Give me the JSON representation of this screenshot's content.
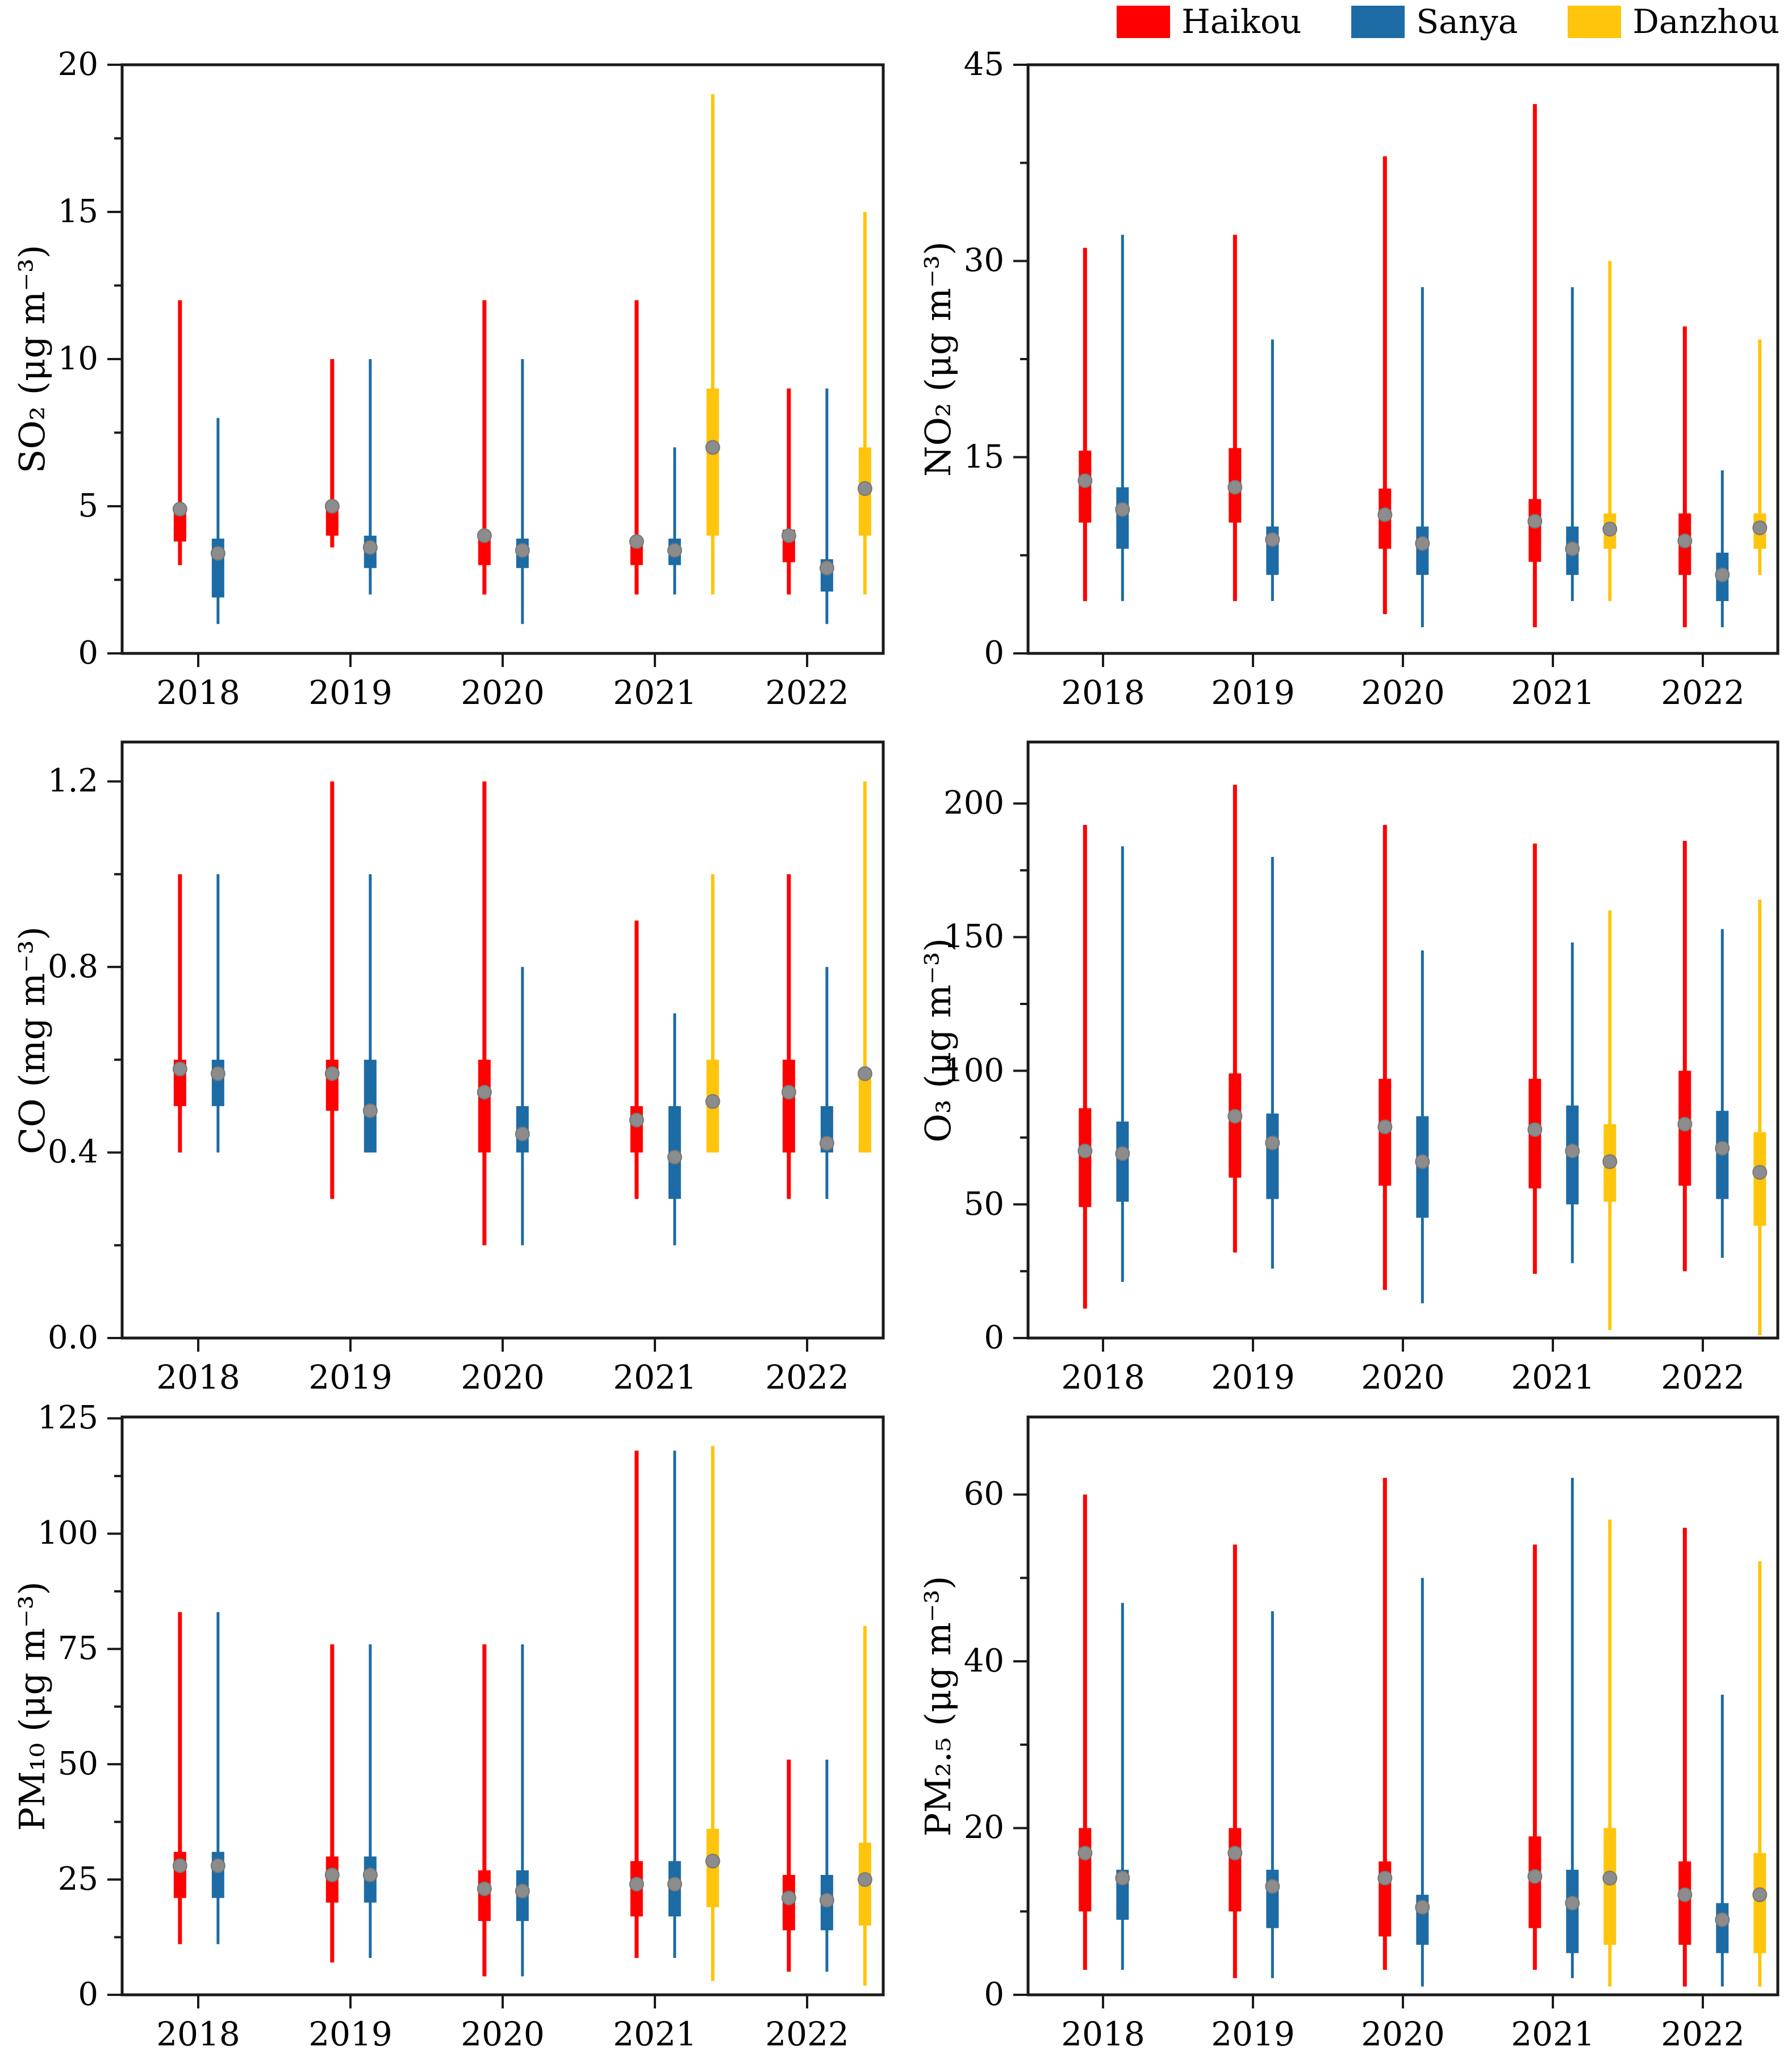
{
  "legend": {
    "items": [
      {
        "label": "Haikou",
        "color": "#fe0000"
      },
      {
        "label": "Sanya",
        "color": "#1c6ba5"
      },
      {
        "label": "Danzhou",
        "color": "#ffc40c"
      }
    ]
  },
  "style": {
    "mean_marker_color": "#8c8c8c",
    "mean_marker_edge": "#767676",
    "axis_color": "#1a1a1a"
  },
  "chart_data": [
    {
      "id": "so2",
      "type": "boxplot",
      "ylabel": "SO₂ (μg m⁻³)",
      "ylim": [
        0,
        20
      ],
      "axis_max": 20,
      "yticks": [
        0,
        5,
        10,
        15,
        20
      ],
      "ytick_labels": [
        "0",
        "5",
        "10",
        "15",
        "20"
      ],
      "minor_tick_step": 2.5,
      "grid": false,
      "legend_position": "top-right-of-figure",
      "categories": [
        "2018",
        "2019",
        "2020",
        "2021",
        "2022"
      ],
      "series": [
        {
          "name": "Haikou",
          "color": "#fe0000",
          "boxes": [
            {
              "lo": 3,
              "q1": 3.8,
              "q3": 5,
              "hi": 12,
              "mean": 4.9
            },
            {
              "lo": 3.6,
              "q1": 4,
              "q3": 5,
              "hi": 10,
              "mean": 5.0
            },
            {
              "lo": 2,
              "q1": 3,
              "q3": 4,
              "hi": 12,
              "mean": 4.0
            },
            {
              "lo": 2,
              "q1": 3,
              "q3": 3.9,
              "hi": 12,
              "mean": 3.8
            },
            {
              "lo": 2,
              "q1": 3.1,
              "q3": 4.2,
              "hi": 9,
              "mean": 4.0
            }
          ]
        },
        {
          "name": "Sanya",
          "color": "#1c6ba5",
          "boxes": [
            {
              "lo": 1,
              "q1": 1.9,
              "q3": 3.9,
              "hi": 8,
              "mean": 3.4
            },
            {
              "lo": 2,
              "q1": 2.9,
              "q3": 4,
              "hi": 10,
              "mean": 3.6
            },
            {
              "lo": 1,
              "q1": 2.9,
              "q3": 3.9,
              "hi": 10,
              "mean": 3.5
            },
            {
              "lo": 2,
              "q1": 3,
              "q3": 3.9,
              "hi": 7,
              "mean": 3.5
            },
            {
              "lo": 1,
              "q1": 2.1,
              "q3": 3.2,
              "hi": 9,
              "mean": 2.9
            }
          ]
        },
        {
          "name": "Danzhou",
          "color": "#ffc40c",
          "boxes": [
            null,
            null,
            null,
            {
              "lo": 2,
              "q1": 4,
              "q3": 9,
              "hi": 19,
              "mean": 7.0
            },
            {
              "lo": 2,
              "q1": 4,
              "q3": 7,
              "hi": 15,
              "mean": 5.6
            }
          ]
        }
      ]
    },
    {
      "id": "no2",
      "type": "boxplot",
      "ylabel": "NO₂ (μg m⁻³)",
      "ylim": [
        0,
        45
      ],
      "axis_max": 45,
      "yticks": [
        0,
        15,
        30,
        45
      ],
      "ytick_labels": [
        "0",
        "15",
        "30",
        "45"
      ],
      "minor_tick_step": 7.5,
      "grid": false,
      "categories": [
        "2018",
        "2019",
        "2020",
        "2021",
        "2022"
      ],
      "series": [
        {
          "name": "Haikou",
          "color": "#fe0000",
          "boxes": [
            {
              "lo": 4,
              "q1": 10,
              "q3": 15.5,
              "hi": 31,
              "mean": 13.2
            },
            {
              "lo": 4,
              "q1": 10,
              "q3": 15.7,
              "hi": 32,
              "mean": 12.7
            },
            {
              "lo": 3,
              "q1": 8,
              "q3": 12.6,
              "hi": 38,
              "mean": 10.6
            },
            {
              "lo": 2,
              "q1": 7,
              "q3": 11.8,
              "hi": 42,
              "mean": 10.1
            },
            {
              "lo": 2,
              "q1": 6,
              "q3": 10.7,
              "hi": 25,
              "mean": 8.6
            }
          ]
        },
        {
          "name": "Sanya",
          "color": "#1c6ba5",
          "boxes": [
            {
              "lo": 4,
              "q1": 8,
              "q3": 12.7,
              "hi": 32,
              "mean": 11.0
            },
            {
              "lo": 4,
              "q1": 6,
              "q3": 9.7,
              "hi": 24,
              "mean": 8.7
            },
            {
              "lo": 2,
              "q1": 6,
              "q3": 9.7,
              "hi": 28,
              "mean": 8.4
            },
            {
              "lo": 4,
              "q1": 6,
              "q3": 9.7,
              "hi": 28,
              "mean": 8.0
            },
            {
              "lo": 2,
              "q1": 4,
              "q3": 7.7,
              "hi": 14,
              "mean": 6.0
            }
          ]
        },
        {
          "name": "Danzhou",
          "color": "#ffc40c",
          "boxes": [
            null,
            null,
            null,
            {
              "lo": 4,
              "q1": 8,
              "q3": 10.7,
              "hi": 30,
              "mean": 9.5
            },
            {
              "lo": 6,
              "q1": 8,
              "q3": 10.7,
              "hi": 24,
              "mean": 9.6
            }
          ]
        }
      ]
    },
    {
      "id": "co",
      "type": "boxplot",
      "ylabel": "CO (mg m⁻³)",
      "ylim": [
        0,
        1.285
      ],
      "axis_max": 1.285,
      "yticks": [
        0,
        0.4,
        0.8,
        1.2
      ],
      "ytick_labels": [
        "0.0",
        "0.4",
        "0.8",
        "1.2"
      ],
      "minor_tick_step": 0.2,
      "grid": false,
      "categories": [
        "2018",
        "2019",
        "2020",
        "2021",
        "2022"
      ],
      "series": [
        {
          "name": "Haikou",
          "color": "#fe0000",
          "boxes": [
            {
              "lo": 0.4,
              "q1": 0.5,
              "q3": 0.6,
              "hi": 1.0,
              "mean": 0.58
            },
            {
              "lo": 0.3,
              "q1": 0.49,
              "q3": 0.6,
              "hi": 1.2,
              "mean": 0.57
            },
            {
              "lo": 0.2,
              "q1": 0.4,
              "q3": 0.6,
              "hi": 1.2,
              "mean": 0.53
            },
            {
              "lo": 0.3,
              "q1": 0.4,
              "q3": 0.5,
              "hi": 0.9,
              "mean": 0.47
            },
            {
              "lo": 0.3,
              "q1": 0.4,
              "q3": 0.6,
              "hi": 1.0,
              "mean": 0.53
            }
          ]
        },
        {
          "name": "Sanya",
          "color": "#1c6ba5",
          "boxes": [
            {
              "lo": 0.4,
              "q1": 0.5,
              "q3": 0.6,
              "hi": 1.0,
              "mean": 0.57
            },
            {
              "lo": 0.4,
              "q1": 0.4,
              "q3": 0.6,
              "hi": 1.0,
              "mean": 0.49
            },
            {
              "lo": 0.2,
              "q1": 0.4,
              "q3": 0.5,
              "hi": 0.8,
              "mean": 0.44
            },
            {
              "lo": 0.2,
              "q1": 0.3,
              "q3": 0.5,
              "hi": 0.7,
              "mean": 0.39
            },
            {
              "lo": 0.3,
              "q1": 0.4,
              "q3": 0.5,
              "hi": 0.8,
              "mean": 0.42
            }
          ]
        },
        {
          "name": "Danzhou",
          "color": "#ffc40c",
          "boxes": [
            null,
            null,
            null,
            {
              "lo": 0.4,
              "q1": 0.4,
              "q3": 0.6,
              "hi": 1.0,
              "mean": 0.51
            },
            {
              "lo": 0.4,
              "q1": 0.4,
              "q3": 0.58,
              "hi": 1.2,
              "mean": 0.57
            }
          ]
        }
      ]
    },
    {
      "id": "o3",
      "type": "boxplot",
      "ylabel": "O₃ (μg m⁻³)",
      "ylim": [
        0,
        223
      ],
      "axis_max": 223,
      "yticks": [
        0,
        50,
        100,
        150,
        200
      ],
      "ytick_labels": [
        "0",
        "50",
        "100",
        "150",
        "200"
      ],
      "minor_tick_step": 25,
      "grid": false,
      "categories": [
        "2018",
        "2019",
        "2020",
        "2021",
        "2022"
      ],
      "series": [
        {
          "name": "Haikou",
          "color": "#fe0000",
          "boxes": [
            {
              "lo": 11,
              "q1": 49,
              "q3": 86,
              "hi": 192,
              "mean": 70
            },
            {
              "lo": 32,
              "q1": 60,
              "q3": 99,
              "hi": 207,
              "mean": 83
            },
            {
              "lo": 18,
              "q1": 57,
              "q3": 97,
              "hi": 192,
              "mean": 79
            },
            {
              "lo": 24,
              "q1": 56,
              "q3": 97,
              "hi": 185,
              "mean": 78
            },
            {
              "lo": 25,
              "q1": 57,
              "q3": 100,
              "hi": 186,
              "mean": 80
            }
          ]
        },
        {
          "name": "Sanya",
          "color": "#1c6ba5",
          "boxes": [
            {
              "lo": 21,
              "q1": 51,
              "q3": 81,
              "hi": 184,
              "mean": 69
            },
            {
              "lo": 26,
              "q1": 52,
              "q3": 84,
              "hi": 180,
              "mean": 73
            },
            {
              "lo": 13,
              "q1": 45,
              "q3": 83,
              "hi": 145,
              "mean": 66
            },
            {
              "lo": 28,
              "q1": 50,
              "q3": 87,
              "hi": 148,
              "mean": 70
            },
            {
              "lo": 30,
              "q1": 52,
              "q3": 85,
              "hi": 153,
              "mean": 71
            }
          ]
        },
        {
          "name": "Danzhou",
          "color": "#ffc40c",
          "boxes": [
            null,
            null,
            null,
            {
              "lo": 3,
              "q1": 51,
              "q3": 80,
              "hi": 160,
              "mean": 66
            },
            {
              "lo": 1,
              "q1": 42,
              "q3": 77,
              "hi": 164,
              "mean": 62
            }
          ]
        }
      ]
    },
    {
      "id": "pm10",
      "type": "boxplot",
      "ylabel": "PM₁₀ (μg m⁻³)",
      "ylim": [
        0,
        125.3
      ],
      "axis_max": 125.3,
      "yticks": [
        0,
        25,
        50,
        75,
        100,
        125
      ],
      "ytick_labels": [
        "0",
        "25",
        "50",
        "75",
        "100",
        "125"
      ],
      "minor_tick_step": 12.5,
      "grid": false,
      "categories": [
        "2018",
        "2019",
        "2020",
        "2021",
        "2022"
      ],
      "series": [
        {
          "name": "Haikou",
          "color": "#fe0000",
          "boxes": [
            {
              "lo": 11,
              "q1": 21,
              "q3": 31,
              "hi": 83,
              "mean": 28
            },
            {
              "lo": 7,
              "q1": 20,
              "q3": 30,
              "hi": 76,
              "mean": 26
            },
            {
              "lo": 4,
              "q1": 16,
              "q3": 27,
              "hi": 76,
              "mean": 23
            },
            {
              "lo": 8,
              "q1": 17,
              "q3": 29,
              "hi": 118,
              "mean": 24
            },
            {
              "lo": 5,
              "q1": 14,
              "q3": 26,
              "hi": 51,
              "mean": 21
            }
          ]
        },
        {
          "name": "Sanya",
          "color": "#1c6ba5",
          "boxes": [
            {
              "lo": 11,
              "q1": 21,
              "q3": 31,
              "hi": 83,
              "mean": 28
            },
            {
              "lo": 8,
              "q1": 20,
              "q3": 30,
              "hi": 76,
              "mean": 26
            },
            {
              "lo": 4,
              "q1": 16,
              "q3": 27,
              "hi": 76,
              "mean": 22.5
            },
            {
              "lo": 8,
              "q1": 17,
              "q3": 29,
              "hi": 118,
              "mean": 24
            },
            {
              "lo": 5,
              "q1": 14,
              "q3": 26,
              "hi": 51,
              "mean": 20.5
            }
          ]
        },
        {
          "name": "Danzhou",
          "color": "#ffc40c",
          "boxes": [
            null,
            null,
            null,
            {
              "lo": 3,
              "q1": 19,
              "q3": 36,
              "hi": 119,
              "mean": 29
            },
            {
              "lo": 2,
              "q1": 15,
              "q3": 33,
              "hi": 80,
              "mean": 25
            }
          ]
        }
      ]
    },
    {
      "id": "pm25",
      "type": "boxplot",
      "ylabel": "PM₂.₅ (μg m⁻³)",
      "ylim": [
        0,
        69.3
      ],
      "axis_max": 69.3,
      "yticks": [
        0,
        20,
        40,
        60
      ],
      "ytick_labels": [
        "0",
        "20",
        "40",
        "60"
      ],
      "minor_tick_step": 10,
      "grid": false,
      "categories": [
        "2018",
        "2019",
        "2020",
        "2021",
        "2022"
      ],
      "series": [
        {
          "name": "Haikou",
          "color": "#fe0000",
          "boxes": [
            {
              "lo": 3,
              "q1": 10,
              "q3": 20,
              "hi": 60,
              "mean": 17
            },
            {
              "lo": 2,
              "q1": 10,
              "q3": 20,
              "hi": 54,
              "mean": 17
            },
            {
              "lo": 3,
              "q1": 7,
              "q3": 16,
              "hi": 62,
              "mean": 14
            },
            {
              "lo": 3,
              "q1": 8,
              "q3": 19,
              "hi": 54,
              "mean": 14.2
            },
            {
              "lo": 1,
              "q1": 6,
              "q3": 16,
              "hi": 56,
              "mean": 12
            }
          ]
        },
        {
          "name": "Sanya",
          "color": "#1c6ba5",
          "boxes": [
            {
              "lo": 3,
              "q1": 9,
              "q3": 15,
              "hi": 47,
              "mean": 14
            },
            {
              "lo": 2,
              "q1": 8,
              "q3": 15,
              "hi": 46,
              "mean": 13
            },
            {
              "lo": 1,
              "q1": 6,
              "q3": 12,
              "hi": 50,
              "mean": 10.5
            },
            {
              "lo": 2,
              "q1": 5,
              "q3": 15,
              "hi": 62,
              "mean": 11
            },
            {
              "lo": 1,
              "q1": 5,
              "q3": 11,
              "hi": 36,
              "mean": 9
            }
          ]
        },
        {
          "name": "Danzhou",
          "color": "#ffc40c",
          "boxes": [
            null,
            null,
            null,
            {
              "lo": 1,
              "q1": 6,
              "q3": 20,
              "hi": 57,
              "mean": 14
            },
            {
              "lo": 1,
              "q1": 5,
              "q3": 17,
              "hi": 52,
              "mean": 12
            }
          ]
        }
      ]
    }
  ]
}
